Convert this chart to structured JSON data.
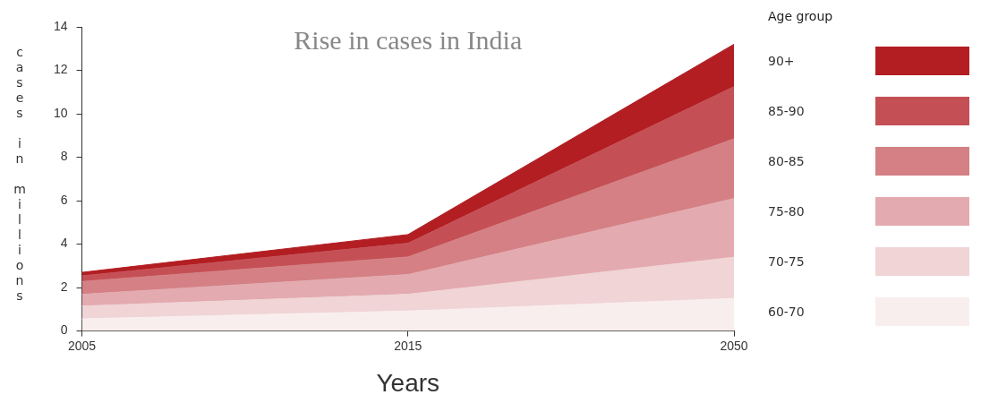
{
  "chart_data": {
    "type": "area",
    "title": "Rise in cases in India",
    "xlabel": "Years",
    "ylabel": "cases in millions",
    "legend_title": "Age group",
    "categories": [
      "2005",
      "2015",
      "2050"
    ],
    "stacked": true,
    "ylim": [
      0,
      14
    ],
    "yticks": [
      0,
      2,
      4,
      6,
      8,
      10,
      12,
      14
    ],
    "grid": false,
    "legend": "right",
    "series": [
      {
        "name": "60-70",
        "color": "#f9eeee",
        "values": [
          0.56,
          0.92,
          1.5
        ]
      },
      {
        "name": "70-75",
        "color": "#f0d4d6",
        "values": [
          0.59,
          0.77,
          1.9
        ]
      },
      {
        "name": "75-80",
        "color": "#e3aaaf",
        "values": [
          0.54,
          0.91,
          2.7
        ]
      },
      {
        "name": "80-85",
        "color": "#d48084",
        "values": [
          0.59,
          0.81,
          2.75
        ]
      },
      {
        "name": "85-90",
        "color": "#c45055",
        "values": [
          0.26,
          0.63,
          2.4
        ]
      },
      {
        "name": "90+",
        "color": "#b21e22",
        "values": [
          0.16,
          0.4,
          1.95
        ]
      }
    ]
  }
}
